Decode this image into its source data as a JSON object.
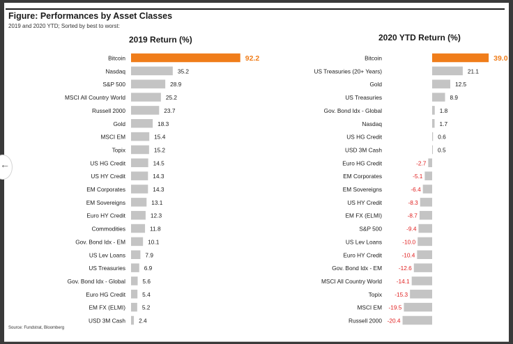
{
  "figure": {
    "title": "Figure: Performances by Asset Classes",
    "subtitle": "2019 and 2020 YTD; Sorted by best to worst:",
    "source": "Source: Fundstrat, Bloomberg"
  },
  "colors": {
    "highlight": "#f07d1a",
    "bar": "#c4c4c4",
    "negative_label": "#e02020",
    "text": "#1a1a1a"
  },
  "chart_data": [
    {
      "type": "bar",
      "orientation": "horizontal",
      "title": "2019 Return (%)",
      "highlight_category": "Bitcoin",
      "categories": [
        "Bitcoin",
        "Nasdaq",
        "S&P 500",
        "MSCI All Country World",
        "Russell 2000",
        "Gold",
        "MSCI EM",
        "Topix",
        "US HG Credit",
        "US HY Credit",
        "EM Corporates",
        "EM Sovereigns",
        "Euro HY Credit",
        "Commodities",
        "Gov. Bond Idx - EM",
        "US Lev Loans",
        "US Treasuries",
        "Gov. Bond Idx - Global",
        "Euro HG Credit",
        "EM FX (ELMI)",
        "USD 3M Cash"
      ],
      "values": [
        92.2,
        35.2,
        28.9,
        25.2,
        23.7,
        18.3,
        15.4,
        15.2,
        14.5,
        14.3,
        14.3,
        13.1,
        12.3,
        11.8,
        10.1,
        7.9,
        6.9,
        5.6,
        5.4,
        5.2,
        2.4
      ],
      "data_labels": [
        "92.2",
        "35.2",
        "28.9",
        "25.2",
        "23.7",
        "18.3",
        "15.4",
        "15.2",
        "14.5",
        "14.3",
        "14.3",
        "13.1",
        "12.3",
        "11.8",
        "10.1",
        "7.9",
        "6.9",
        "5.6",
        "5.4",
        "5.2",
        "2.4"
      ]
    },
    {
      "type": "bar",
      "orientation": "horizontal",
      "title": "2020 YTD Return (%)",
      "highlight_category": "Bitcoin",
      "categories": [
        "Bitcoin",
        "US Treasuries (20+ Years)",
        "Gold",
        "US Treasuries",
        "Gov. Bond Idx - Global",
        "Nasdaq",
        "US HG Credit",
        "USD 3M Cash",
        "Euro HG Credit",
        "EM Corporates",
        "EM Sovereigns",
        "US HY Credit",
        "EM FX (ELMI)",
        "S&P 500",
        "US Lev Loans",
        "Euro HY Credit",
        "Gov. Bond Idx - EM",
        "MSCI All Country World",
        "Topix",
        "MSCI EM",
        "Russell 2000"
      ],
      "values": [
        39.0,
        21.1,
        12.5,
        8.9,
        1.8,
        1.7,
        0.6,
        0.5,
        -2.7,
        -5.1,
        -6.4,
        -8.3,
        -8.7,
        -9.4,
        -10.0,
        -10.4,
        -12.6,
        -14.1,
        -15.3,
        -19.5,
        -20.4
      ],
      "data_labels": [
        "39.0",
        "21.1",
        "12.5",
        "8.9",
        "1.8",
        "1.7",
        "0.6",
        "0.5",
        "-2.7",
        "-5.1",
        "-6.4",
        "-8.3",
        "-8.7",
        "-9.4",
        "-10.0",
        "-10.4",
        "-12.6",
        "-14.1",
        "-15.3",
        "-19.5",
        "-20.4"
      ]
    }
  ]
}
